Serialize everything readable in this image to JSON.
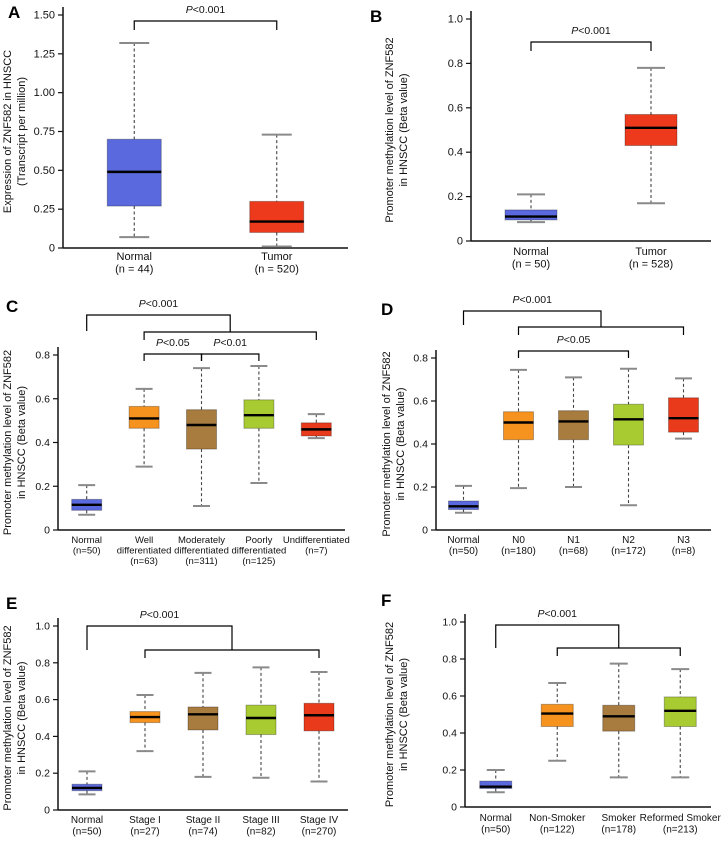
{
  "figure": {
    "name": "ZNF582 in HNSCC box plot figure",
    "p_text_color": "#000000",
    "normal_color": "#5a69dd",
    "tumor_red": "#ee3a1c",
    "orange": "#f6921e",
    "brown": "#a87b3e",
    "green": "#a9cb32"
  },
  "chart_data": [
    {
      "id": "A",
      "type": "box",
      "ylabel": [
        "Expression of ZNF582 in HNSCC",
        "(Transcript per million)"
      ],
      "ymax": 1.5,
      "yticks": [
        "0",
        "0.25",
        "0.50",
        "0.75",
        "1.00",
        "1.25",
        "1.50"
      ],
      "categories": [
        {
          "name": [
            "Normal"
          ],
          "n": "(n = 44)",
          "color": "#5a69dd",
          "box": {
            "low": 0.07,
            "q1": 0.27,
            "median": 0.49,
            "q3": 0.7,
            "high": 1.32
          }
        },
        {
          "name": [
            "Tumor"
          ],
          "n": "(n = 520)",
          "color": "#ee3a1c",
          "box": {
            "low": 0.01,
            "q1": 0.1,
            "median": 0.17,
            "q3": 0.3,
            "high": 0.73
          }
        }
      ],
      "significance": [
        {
          "type": "simple",
          "from": 0,
          "to": 1,
          "level": "top",
          "label": "P<0.001"
        }
      ]
    },
    {
      "id": "B",
      "type": "box",
      "ylabel": [
        "Promoter methylation level of ZNF582",
        "in HNSCC (Beta value)"
      ],
      "ymax": 1.0,
      "yticks": [
        "0",
        "0.2",
        "0.4",
        "0.6",
        "0.8",
        "1.0"
      ],
      "categories": [
        {
          "name": [
            "Normal"
          ],
          "n": "(n = 50)",
          "color": "#5a69dd",
          "box": {
            "low": 0.085,
            "q1": 0.095,
            "median": 0.11,
            "q3": 0.14,
            "high": 0.21
          }
        },
        {
          "name": [
            "Tumor"
          ],
          "n": "(n = 528)",
          "color": "#ee3a1c",
          "box": {
            "low": 0.17,
            "q1": 0.43,
            "median": 0.51,
            "q3": 0.57,
            "high": 0.78
          }
        }
      ],
      "significance": [
        {
          "type": "simple",
          "from": 0,
          "to": 1,
          "level": "top",
          "label": "P<0.001"
        }
      ]
    },
    {
      "id": "C",
      "type": "box",
      "ylabel": [
        "Promoter methylation level of ZNF582",
        "in HNSCC (Beta value)"
      ],
      "ymax": 0.8,
      "yticks": [
        "0",
        "0.2",
        "0.4",
        "0.6",
        "0.8"
      ],
      "categories": [
        {
          "name": [
            "Normal"
          ],
          "n": "(n=50)",
          "color": "#5a69dd",
          "box": {
            "low": 0.07,
            "q1": 0.09,
            "median": 0.115,
            "q3": 0.14,
            "high": 0.205
          }
        },
        {
          "name": [
            "Well",
            "differentiated"
          ],
          "n": "(n=63)",
          "color": "#f6921e",
          "box": {
            "low": 0.29,
            "q1": 0.465,
            "median": 0.51,
            "q3": 0.565,
            "high": 0.645
          }
        },
        {
          "name": [
            "Moderately",
            "differentiated"
          ],
          "n": "(n=311)",
          "color": "#a87b3e",
          "box": {
            "low": 0.11,
            "q1": 0.37,
            "median": 0.48,
            "q3": 0.55,
            "high": 0.74
          }
        },
        {
          "name": [
            "Poorly",
            "differentiated"
          ],
          "n": "(n=125)",
          "color": "#a9cb32",
          "box": {
            "low": 0.215,
            "q1": 0.465,
            "median": 0.525,
            "q3": 0.595,
            "high": 0.75
          }
        },
        {
          "name": [
            "Undifferentiated"
          ],
          "n": "(n=7)",
          "color": "#e93a1c",
          "box": {
            "low": 0.42,
            "q1": 0.43,
            "median": 0.46,
            "q3": 0.49,
            "high": 0.53
          }
        }
      ],
      "significance": [
        {
          "type": "nested",
          "from": 0,
          "group": [
            1,
            4
          ],
          "label": "P<0.001"
        },
        {
          "type": "simple",
          "from": 1,
          "to": 2,
          "level": "sub",
          "label": "P<0.05"
        },
        {
          "type": "simple",
          "from": 2,
          "to": 3,
          "level": "sub",
          "label": "P<0.01"
        }
      ]
    },
    {
      "id": "D",
      "type": "box",
      "ylabel": [
        "Promoter methylation level of ZNF582",
        "in HNSCC (Beta value)"
      ],
      "ymax": 0.8,
      "yticks": [
        "0",
        "0.2",
        "0.4",
        "0.6",
        "0.8"
      ],
      "categories": [
        {
          "name": [
            "Normal"
          ],
          "n": "(n=50)",
          "color": "#5a69dd",
          "box": {
            "low": 0.08,
            "q1": 0.095,
            "median": 0.11,
            "q3": 0.135,
            "high": 0.205
          }
        },
        {
          "name": [
            "N0"
          ],
          "n": "(n=180)",
          "color": "#f6921e",
          "box": {
            "low": 0.195,
            "q1": 0.42,
            "median": 0.5,
            "q3": 0.55,
            "high": 0.745
          }
        },
        {
          "name": [
            "N1"
          ],
          "n": "(n=68)",
          "color": "#a87b3e",
          "box": {
            "low": 0.2,
            "q1": 0.42,
            "median": 0.505,
            "q3": 0.555,
            "high": 0.71
          }
        },
        {
          "name": [
            "N2"
          ],
          "n": "(n=172)",
          "color": "#a9cb32",
          "box": {
            "low": 0.115,
            "q1": 0.395,
            "median": 0.515,
            "q3": 0.585,
            "high": 0.75
          }
        },
        {
          "name": [
            "N3"
          ],
          "n": "(n=8)",
          "color": "#e93a1c",
          "box": {
            "low": 0.425,
            "q1": 0.455,
            "median": 0.52,
            "q3": 0.615,
            "high": 0.705
          }
        }
      ],
      "significance": [
        {
          "type": "nested",
          "from": 0,
          "group": [
            1,
            4
          ],
          "label": "P<0.001"
        },
        {
          "type": "simple",
          "from": 1,
          "to": 3,
          "level": "sub",
          "label": "P<0.05"
        }
      ]
    },
    {
      "id": "E",
      "type": "box",
      "ylabel": [
        "Promoter methylation level of ZNF582",
        "in HNSCC (Beta value)"
      ],
      "ymax": 1.0,
      "yticks": [
        "0",
        "0.2",
        "0.4",
        "0.6",
        "0.8",
        "1.0"
      ],
      "categories": [
        {
          "name": [
            "Normal"
          ],
          "n": "(n=50)",
          "color": "#5a69dd",
          "box": {
            "low": 0.085,
            "q1": 0.105,
            "median": 0.12,
            "q3": 0.14,
            "high": 0.21
          }
        },
        {
          "name": [
            "Stage I"
          ],
          "n": "(n=27)",
          "color": "#f6921e",
          "box": {
            "low": 0.32,
            "q1": 0.475,
            "median": 0.505,
            "q3": 0.535,
            "high": 0.625
          }
        },
        {
          "name": [
            "Stage II"
          ],
          "n": "(n=74)",
          "color": "#a87b3e",
          "box": {
            "low": 0.18,
            "q1": 0.435,
            "median": 0.52,
            "q3": 0.56,
            "high": 0.745
          }
        },
        {
          "name": [
            "Stage III"
          ],
          "n": "(n=82)",
          "color": "#a9cb32",
          "box": {
            "low": 0.175,
            "q1": 0.41,
            "median": 0.5,
            "q3": 0.57,
            "high": 0.775
          }
        },
        {
          "name": [
            "Stage IV"
          ],
          "n": "(n=270)",
          "color": "#e93a1c",
          "box": {
            "low": 0.155,
            "q1": 0.43,
            "median": 0.515,
            "q3": 0.58,
            "high": 0.75
          }
        }
      ],
      "significance": [
        {
          "type": "nested",
          "from": 0,
          "group": [
            1,
            4
          ],
          "label": "P<0.001"
        }
      ]
    },
    {
      "id": "F",
      "type": "box",
      "ylabel": [
        "Promoter methylation level of ZNF582",
        "in HNSCC (Beta value)"
      ],
      "ymax": 1.0,
      "yticks": [
        "0",
        "0.2",
        "0.4",
        "0.6",
        "0.8",
        "1.0"
      ],
      "categories": [
        {
          "name": [
            "Normal"
          ],
          "n": "(n=50)",
          "color": "#5a69dd",
          "box": {
            "low": 0.08,
            "q1": 0.1,
            "median": 0.11,
            "q3": 0.14,
            "high": 0.2
          }
        },
        {
          "name": [
            "Non-Smoker"
          ],
          "n": "(n=122)",
          "color": "#f6921e",
          "box": {
            "low": 0.25,
            "q1": 0.435,
            "median": 0.505,
            "q3": 0.555,
            "high": 0.67
          }
        },
        {
          "name": [
            "Smoker"
          ],
          "n": "(n=178)",
          "color": "#a87b3e",
          "box": {
            "low": 0.16,
            "q1": 0.41,
            "median": 0.49,
            "q3": 0.55,
            "high": 0.775
          }
        },
        {
          "name": [
            "Reformed Smoker"
          ],
          "n": "(n=213)",
          "color": "#a9cb32",
          "box": {
            "low": 0.16,
            "q1": 0.435,
            "median": 0.52,
            "q3": 0.595,
            "high": 0.745
          }
        }
      ],
      "significance": [
        {
          "type": "nested",
          "from": 0,
          "group": [
            1,
            3
          ],
          "label": "P<0.001"
        }
      ]
    }
  ]
}
